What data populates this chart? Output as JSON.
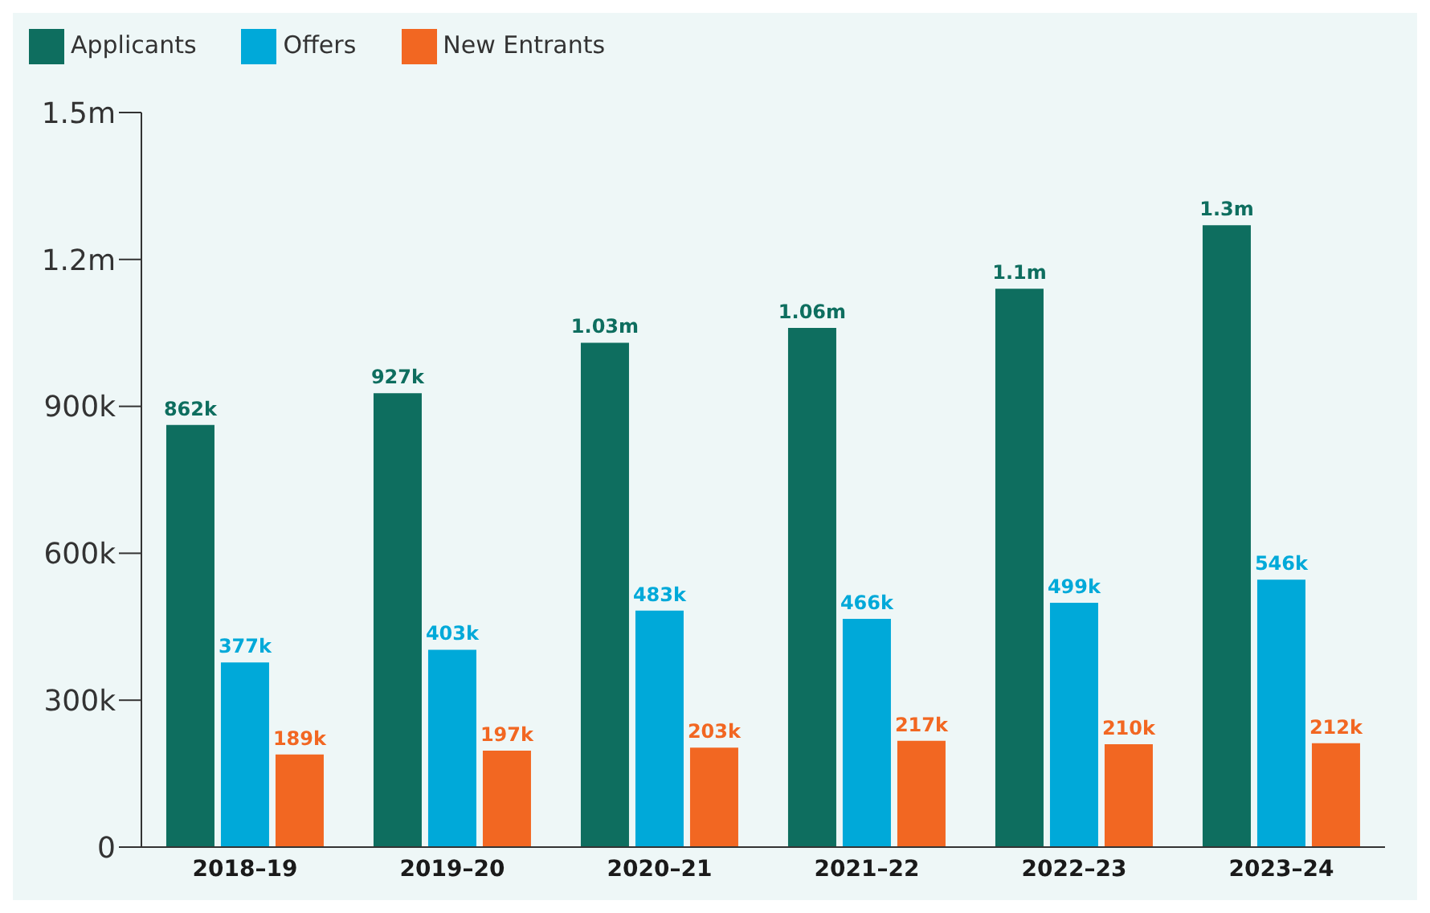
{
  "chart_data": {
    "type": "bar",
    "categories": [
      "2018–19",
      "2019–20",
      "2020–21",
      "2021–22",
      "2022–23",
      "2023–24"
    ],
    "series": [
      {
        "name": "Applicants",
        "color": "#0e6e5f",
        "values": [
          862000,
          927000,
          1030000,
          1060000,
          1140000,
          1270000
        ],
        "value_labels": [
          "862k",
          "927k",
          "1.03m",
          "1.06m",
          "1.1m",
          "1.3m"
        ]
      },
      {
        "name": "Offers",
        "color": "#00a9d9",
        "values": [
          377000,
          403000,
          483000,
          466000,
          499000,
          546000
        ],
        "value_labels": [
          "377k",
          "403k",
          "483k",
          "466k",
          "499k",
          "546k"
        ]
      },
      {
        "name": "New Entrants",
        "color": "#f26722",
        "values": [
          189000,
          197000,
          203000,
          217000,
          210000,
          212000
        ],
        "value_labels": [
          "189k",
          "197k",
          "203k",
          "217k",
          "210k",
          "212k"
        ]
      }
    ],
    "ylim": [
      0,
      1500000
    ],
    "yticks": [
      {
        "value": 0,
        "label": "0"
      },
      {
        "value": 300000,
        "label": "300k"
      },
      {
        "value": 600000,
        "label": "600k"
      },
      {
        "value": 900000,
        "label": "900k"
      },
      {
        "value": 1200000,
        "label": "1.2m"
      },
      {
        "value": 1500000,
        "label": "1.5m"
      }
    ],
    "grid": false,
    "legend": "top left"
  }
}
